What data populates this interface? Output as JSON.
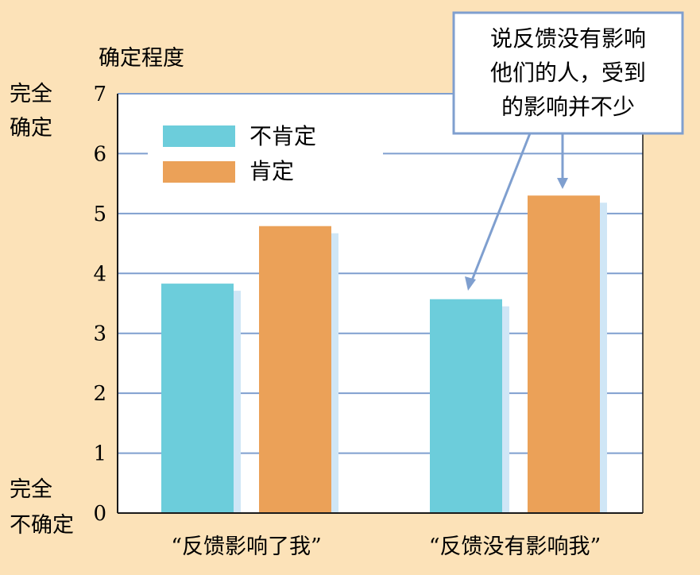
{
  "chart_data": {
    "type": "bar",
    "ylabel": "确定程度",
    "y_top_label": [
      "完全",
      "确定"
    ],
    "y_bottom_label": [
      "完全",
      "不确定"
    ],
    "ylim": [
      0,
      7
    ],
    "yticks": [
      "0",
      "1",
      "2",
      "3",
      "4",
      "5",
      "6",
      "7"
    ],
    "grid": true,
    "legend_position": "top-left",
    "categories": [
      "“反馈影响了我”",
      "“反馈没有影响我”"
    ],
    "series": [
      {
        "name": "不肯定",
        "color": "#6ccddb",
        "values": [
          3.83,
          3.57
        ]
      },
      {
        "name": "肯定",
        "color": "#eba158",
        "values": [
          4.79,
          5.3
        ]
      }
    ],
    "annotation": {
      "lines": [
        "说反馈没有影响",
        "他们的人，受到",
        "的影响并不少"
      ],
      "border_color": "#7f9fcf"
    },
    "colors": {
      "background": "#fce2b8",
      "plot_background": "#ffffff",
      "grid": "#7f9fcf",
      "bar_shadow": "#cfe6f6",
      "axis": "#1a1a1a"
    }
  }
}
